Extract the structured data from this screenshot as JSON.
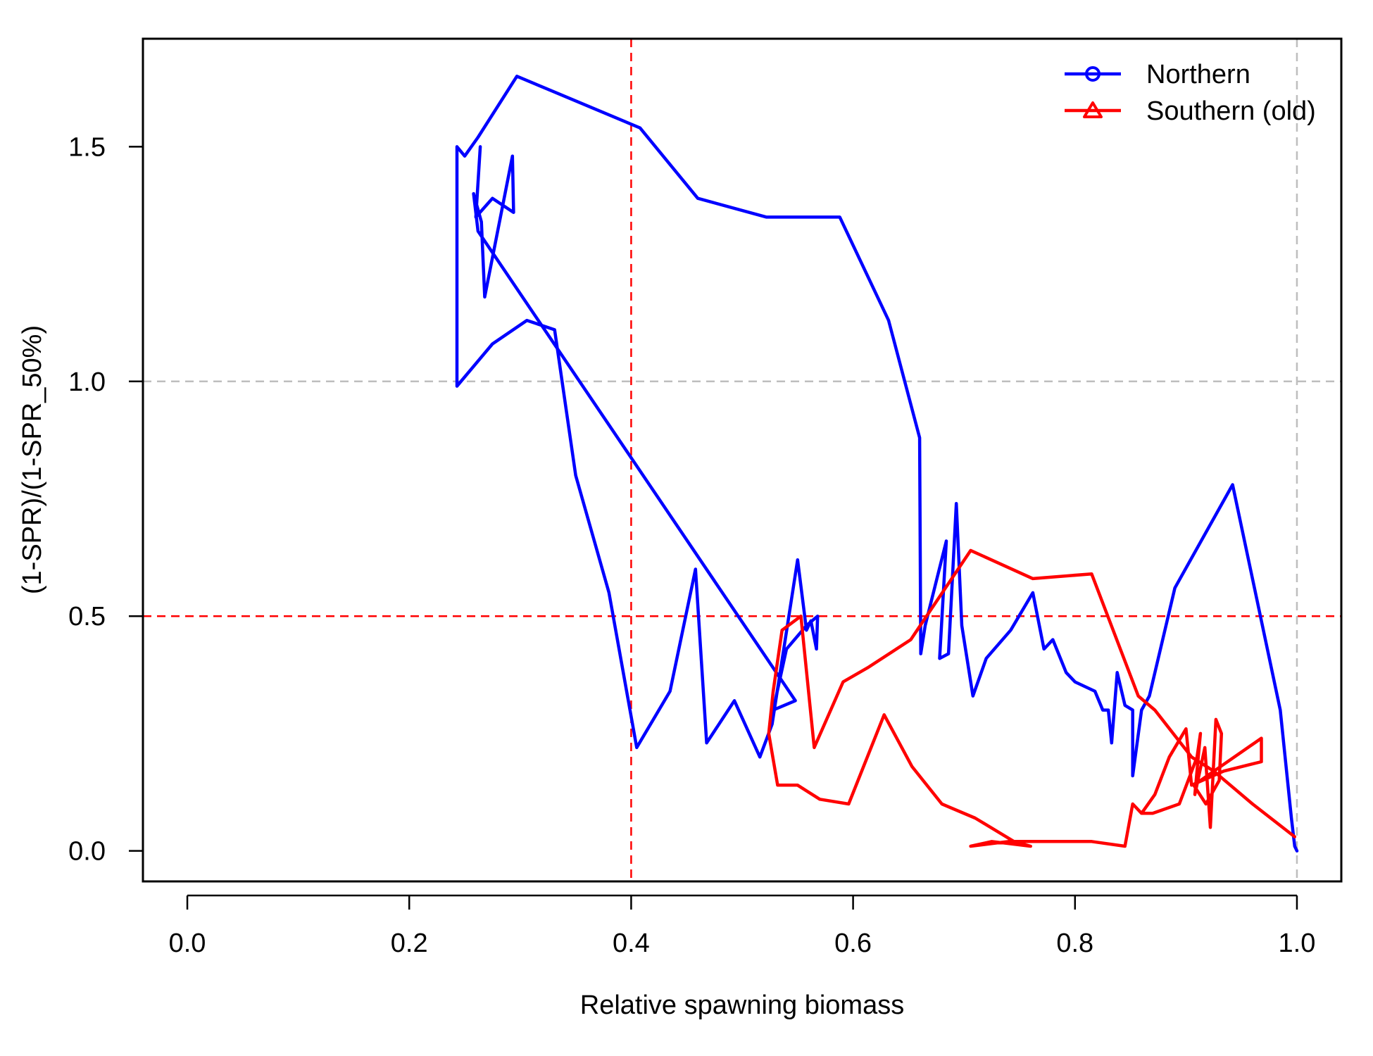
{
  "chart_data": {
    "type": "line",
    "title": "",
    "xlabel": "Relative spawning biomass",
    "ylabel": "(1-SPR)/(1-SPR_50%)",
    "xlim": [
      -0.04,
      1.04
    ],
    "ylim": [
      -0.065,
      1.73
    ],
    "xticks": [
      0.0,
      0.2,
      0.4,
      0.6,
      0.8,
      1.0
    ],
    "xtick_labels": [
      "0.0",
      "0.2",
      "0.4",
      "0.6",
      "0.8",
      "1.0"
    ],
    "yticks": [
      0.0,
      0.5,
      1.0,
      1.5
    ],
    "ytick_labels": [
      "0.0",
      "0.5",
      "1.0",
      "1.5"
    ],
    "grid": false,
    "legend_position": "top-right",
    "reference_lines": [
      {
        "axis": "x",
        "value": 0.4,
        "color": "#FF0000",
        "style": "dashed"
      },
      {
        "axis": "y",
        "value": 0.5,
        "color": "#FF0000",
        "style": "dashed"
      },
      {
        "axis": "x",
        "value": 1.0,
        "color": "#BEBEBE",
        "style": "dashed"
      },
      {
        "axis": "y",
        "value": 1.0,
        "color": "#BEBEBE",
        "style": "dashed"
      }
    ],
    "series": [
      {
        "name": "Northern",
        "color": "#0000FF",
        "marker": "circle",
        "points": [
          [
            1.0,
            0.0
          ],
          [
            0.998,
            0.01
          ],
          [
            0.995,
            0.07
          ],
          [
            0.985,
            0.3
          ],
          [
            0.942,
            0.78
          ],
          [
            0.89,
            0.56
          ],
          [
            0.867,
            0.33
          ],
          [
            0.86,
            0.3
          ],
          [
            0.852,
            0.16
          ],
          [
            0.852,
            0.3
          ],
          [
            0.845,
            0.31
          ],
          [
            0.838,
            0.38
          ],
          [
            0.833,
            0.23
          ],
          [
            0.83,
            0.3
          ],
          [
            0.825,
            0.3
          ],
          [
            0.818,
            0.34
          ],
          [
            0.8,
            0.36
          ],
          [
            0.792,
            0.38
          ],
          [
            0.78,
            0.45
          ],
          [
            0.772,
            0.43
          ],
          [
            0.762,
            0.55
          ],
          [
            0.742,
            0.47
          ],
          [
            0.72,
            0.41
          ],
          [
            0.708,
            0.33
          ],
          [
            0.698,
            0.48
          ],
          [
            0.693,
            0.74
          ],
          [
            0.686,
            0.42
          ],
          [
            0.678,
            0.41
          ],
          [
            0.684,
            0.66
          ],
          [
            0.665,
            0.48
          ],
          [
            0.661,
            0.42
          ],
          [
            0.66,
            0.88
          ],
          [
            0.632,
            1.13
          ],
          [
            0.588,
            1.35
          ],
          [
            0.522,
            1.35
          ],
          [
            0.46,
            1.39
          ],
          [
            0.408,
            1.54
          ],
          [
            0.297,
            1.65
          ],
          [
            0.262,
            1.52
          ],
          [
            0.25,
            1.48
          ],
          [
            0.243,
            1.5
          ],
          [
            0.243,
            0.99
          ],
          [
            0.275,
            1.08
          ],
          [
            0.306,
            1.13
          ],
          [
            0.331,
            1.11
          ],
          [
            0.35,
            0.8
          ],
          [
            0.38,
            0.55
          ],
          [
            0.405,
            0.22
          ],
          [
            0.435,
            0.34
          ],
          [
            0.458,
            0.6
          ],
          [
            0.468,
            0.23
          ],
          [
            0.493,
            0.32
          ],
          [
            0.516,
            0.2
          ],
          [
            0.527,
            0.27
          ],
          [
            0.55,
            0.62
          ],
          [
            0.558,
            0.47
          ],
          [
            0.562,
            0.49
          ],
          [
            0.567,
            0.43
          ],
          [
            0.568,
            0.5
          ],
          [
            0.558,
            0.48
          ],
          [
            0.54,
            0.43
          ],
          [
            0.528,
            0.3
          ],
          [
            0.548,
            0.32
          ],
          [
            0.262,
            1.32
          ],
          [
            0.258,
            1.4
          ],
          [
            0.265,
            1.34
          ],
          [
            0.268,
            1.18
          ],
          [
            0.293,
            1.48
          ],
          [
            0.294,
            1.36
          ],
          [
            0.275,
            1.39
          ],
          [
            0.26,
            1.35
          ],
          [
            0.264,
            1.5
          ]
        ]
      },
      {
        "name": "Southern (old)",
        "color": "#FF0000",
        "marker": "triangle",
        "points": [
          [
            0.998,
            0.03
          ],
          [
            0.96,
            0.1
          ],
          [
            0.925,
            0.17
          ],
          [
            0.905,
            0.2
          ],
          [
            0.872,
            0.3
          ],
          [
            0.857,
            0.33
          ],
          [
            0.815,
            0.59
          ],
          [
            0.762,
            0.58
          ],
          [
            0.706,
            0.64
          ],
          [
            0.652,
            0.45
          ],
          [
            0.613,
            0.39
          ],
          [
            0.591,
            0.36
          ],
          [
            0.565,
            0.22
          ],
          [
            0.553,
            0.5
          ],
          [
            0.536,
            0.47
          ],
          [
            0.528,
            0.34
          ],
          [
            0.524,
            0.25
          ],
          [
            0.532,
            0.14
          ],
          [
            0.55,
            0.14
          ],
          [
            0.57,
            0.11
          ],
          [
            0.596,
            0.1
          ],
          [
            0.628,
            0.29
          ],
          [
            0.653,
            0.18
          ],
          [
            0.68,
            0.1
          ],
          [
            0.71,
            0.07
          ],
          [
            0.745,
            0.02
          ],
          [
            0.76,
            0.01
          ],
          [
            0.725,
            0.02
          ],
          [
            0.706,
            0.01
          ],
          [
            0.74,
            0.02
          ],
          [
            0.78,
            0.02
          ],
          [
            0.815,
            0.02
          ],
          [
            0.845,
            0.01
          ],
          [
            0.852,
            0.1
          ],
          [
            0.86,
            0.08
          ],
          [
            0.87,
            0.08
          ],
          [
            0.894,
            0.1
          ],
          [
            0.91,
            0.2
          ],
          [
            0.913,
            0.25
          ],
          [
            0.908,
            0.12
          ],
          [
            0.917,
            0.22
          ],
          [
            0.922,
            0.05
          ],
          [
            0.927,
            0.28
          ],
          [
            0.932,
            0.25
          ],
          [
            0.93,
            0.15
          ],
          [
            0.918,
            0.1
          ],
          [
            0.907,
            0.14
          ],
          [
            0.968,
            0.24
          ],
          [
            0.968,
            0.19
          ],
          [
            0.934,
            0.17
          ],
          [
            0.905,
            0.14
          ],
          [
            0.9,
            0.26
          ],
          [
            0.885,
            0.2
          ],
          [
            0.872,
            0.12
          ],
          [
            0.86,
            0.08
          ]
        ]
      }
    ]
  }
}
